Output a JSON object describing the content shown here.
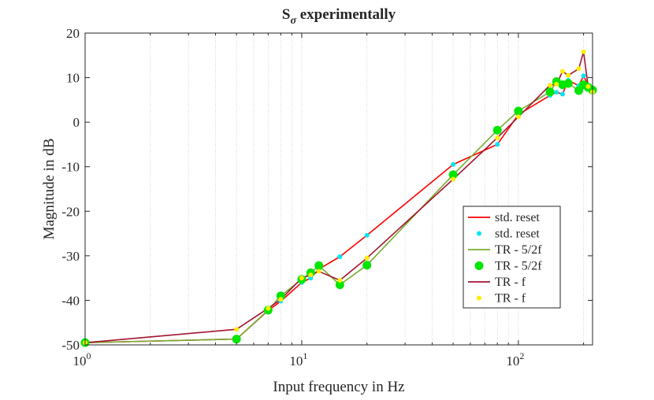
{
  "chart_data": {
    "type": "line",
    "title": "S_σ experimentally",
    "title_main": "S",
    "title_subscript": "σ",
    "title_rest": " experimentally",
    "xlabel": "Input frequency in Hz",
    "ylabel": "Magnitude in dB",
    "xscale": "log",
    "xlim": [
      1,
      220
    ],
    "ylim": [
      -50,
      20
    ],
    "grid": "vertical minor dotted",
    "legend_position": "bottom-right",
    "x_ticks": [
      {
        "value": 1,
        "base": "10",
        "exp": "0"
      },
      {
        "value": 10,
        "base": "10",
        "exp": "1"
      },
      {
        "value": 100,
        "base": "10",
        "exp": "2"
      }
    ],
    "y_ticks": [
      {
        "value": 20,
        "label": "20"
      },
      {
        "value": 10,
        "label": "10"
      },
      {
        "value": 0,
        "label": "0"
      },
      {
        "value": -10,
        "label": "-10"
      },
      {
        "value": -20,
        "label": "-20"
      },
      {
        "value": -30,
        "label": "-30"
      },
      {
        "value": -40,
        "label": "-40"
      },
      {
        "value": -50,
        "label": "-50"
      }
    ],
    "series": [
      {
        "name": "std. reset",
        "kind": "line",
        "color": "#ff0000",
        "x": [
          1,
          5,
          7,
          8,
          10,
          11,
          12,
          15,
          20,
          50,
          80,
          100,
          140,
          150,
          160,
          170,
          190,
          200,
          210,
          220
        ],
        "y": [
          -49.5,
          -48.7,
          -42.3,
          -40.2,
          -36,
          -35,
          -33,
          -30.2,
          -25.4,
          -9.5,
          -5,
          1.7,
          6,
          6.7,
          6.3,
          9.4,
          8.2,
          10.4,
          8.3,
          7
        ]
      },
      {
        "name": "std. reset",
        "kind": "markers",
        "color": "#00e5ee",
        "marker": "small",
        "x": [
          1,
          5,
          7,
          8,
          10,
          11,
          12,
          15,
          20,
          50,
          80,
          100,
          140,
          150,
          160,
          170,
          190,
          200,
          210,
          220
        ],
        "y": [
          -49.5,
          -48.7,
          -42.3,
          -40.2,
          -36,
          -35,
          -33,
          -30.2,
          -25.4,
          -9.5,
          -5,
          1.7,
          6,
          6.7,
          6.3,
          9.4,
          8.2,
          10.4,
          8.3,
          7
        ]
      },
      {
        "name": "TR - 5/2f",
        "kind": "line",
        "color": "#77ac30",
        "x": [
          1,
          5,
          7,
          8,
          10,
          11,
          12,
          15,
          20,
          50,
          80,
          100,
          140,
          150,
          160,
          170,
          190,
          200,
          210,
          220
        ],
        "y": [
          -49.5,
          -48.7,
          -42.2,
          -39,
          -35.3,
          -33.8,
          -32.2,
          -36.5,
          -32.1,
          -11.8,
          -1.8,
          2.5,
          6.8,
          9.1,
          8.4,
          8.7,
          7.1,
          8.4,
          7.8,
          7.2
        ]
      },
      {
        "name": "TR - 5/2f",
        "kind": "markers",
        "color": "#00e600",
        "marker": "large",
        "x": [
          1,
          5,
          7,
          8,
          10,
          11,
          12,
          15,
          20,
          50,
          80,
          100,
          140,
          150,
          160,
          170,
          190,
          200,
          210,
          220
        ],
        "y": [
          -49.5,
          -48.7,
          -42.2,
          -39,
          -35.3,
          -33.8,
          -32.2,
          -36.5,
          -32.1,
          -11.8,
          -1.8,
          2.5,
          6.8,
          9.1,
          8.4,
          8.7,
          7.1,
          8.4,
          7.8,
          7.2
        ]
      },
      {
        "name": "TR - f",
        "kind": "line",
        "color": "#a2142f",
        "x": [
          1,
          5,
          7,
          8,
          10,
          11,
          12,
          15,
          20,
          50,
          80,
          100,
          140,
          150,
          160,
          170,
          190,
          200,
          210,
          220
        ],
        "y": [
          -49.5,
          -46.5,
          -41.8,
          -39.8,
          -35,
          -34.3,
          -33.5,
          -35.5,
          -30.5,
          -12.8,
          -3.5,
          1.2,
          8.3,
          8.5,
          11.4,
          10.5,
          12,
          15.8,
          8,
          6.8
        ]
      },
      {
        "name": "TR - f",
        "kind": "markers",
        "color": "#ffee00",
        "marker": "small",
        "x": [
          1,
          5,
          7,
          8,
          10,
          11,
          12,
          15,
          20,
          50,
          80,
          100,
          140,
          150,
          160,
          170,
          190,
          200,
          210,
          220
        ],
        "y": [
          -49.5,
          -46.5,
          -41.8,
          -39.8,
          -35,
          -34.3,
          -33.5,
          -35.5,
          -30.5,
          -12.8,
          -3.5,
          1.2,
          8.3,
          8.5,
          11.4,
          10.5,
          12,
          15.8,
          8,
          6.8
        ]
      }
    ]
  }
}
